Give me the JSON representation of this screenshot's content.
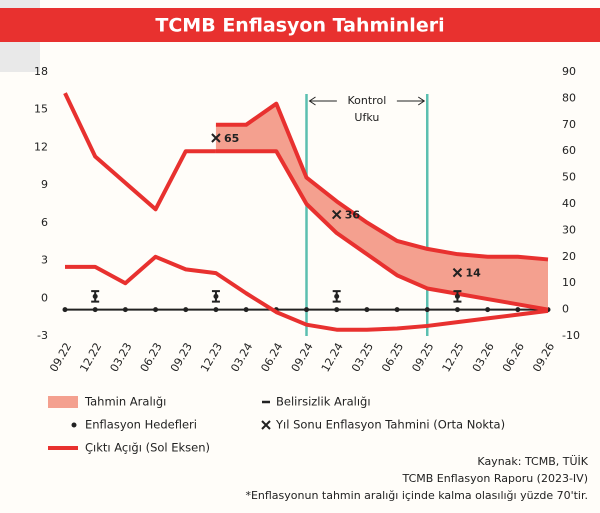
{
  "chart_data": {
    "type": "line",
    "title": "TCMB Enflasyon Tahminleri",
    "categories": [
      "09.22",
      "12.22",
      "03.23",
      "06.23",
      "09.23",
      "12.23",
      "03.24",
      "06.24",
      "09.24",
      "12.24",
      "03.25",
      "06.25",
      "09.25",
      "12.25",
      "03.26",
      "06.26",
      "09.26"
    ],
    "ylim": [
      -3,
      18
    ],
    "yticks": [
      -3,
      0,
      3,
      6,
      9,
      12,
      15,
      18
    ],
    "y2lim": [
      -10,
      90
    ],
    "y2ticks": [
      -10,
      0,
      10,
      20,
      30,
      40,
      50,
      60,
      70,
      80,
      90
    ],
    "series": [
      {
        "name": "Tahmin Aralığı",
        "type": "band",
        "axis": "y2",
        "color": "#f4a08f",
        "line_color": "#e8312f",
        "lower": [
          null,
          null,
          null,
          null,
          null,
          60,
          60,
          60,
          40,
          29,
          21,
          13,
          8,
          6,
          4,
          2,
          0
        ],
        "upper": [
          null,
          null,
          null,
          null,
          null,
          70,
          70,
          78,
          50,
          41,
          33,
          26,
          23,
          21,
          20,
          20,
          19
        ]
      },
      {
        "type": "line",
        "axis": "y2",
        "color": "#e8312f",
        "values": [
          82,
          58,
          48,
          38,
          60,
          60,
          null,
          null,
          null,
          null,
          null,
          null,
          null,
          null,
          null,
          null,
          null
        ]
      },
      {
        "name": "Belirsizlik Aralığı",
        "type": "errorbar",
        "axis": "y2",
        "color": "#222",
        "lower": [
          null,
          3,
          null,
          null,
          null,
          3,
          null,
          null,
          null,
          3,
          null,
          null,
          null,
          3,
          null,
          null,
          null
        ],
        "upper": [
          null,
          7,
          null,
          null,
          null,
          7,
          null,
          null,
          null,
          7,
          null,
          null,
          null,
          7,
          null,
          null,
          null
        ]
      },
      {
        "name": "Enflasyon Hedefleri",
        "type": "dot",
        "axis": "y2",
        "color": "#222",
        "values": [
          null,
          5,
          null,
          null,
          null,
          5,
          null,
          null,
          null,
          5,
          null,
          null,
          null,
          5,
          null,
          null,
          null
        ]
      },
      {
        "name": "Yıl Sonu Enflasyon Tahmini (Orta Nokta)",
        "type": "x",
        "axis": "y2",
        "color": "#222",
        "values": [
          null,
          null,
          null,
          null,
          null,
          65,
          null,
          null,
          null,
          36,
          null,
          null,
          null,
          14,
          null,
          null,
          null
        ]
      },
      {
        "name": "Çıktı Açığı (Sol Eksen)",
        "type": "line",
        "axis": "y",
        "color": "#e8312f",
        "values": [
          2.5,
          2.5,
          1.2,
          3.3,
          2.3,
          2.0,
          0.4,
          -1.1,
          -2.1,
          -2.5,
          -2.5,
          -2.4,
          -2.2,
          -1.9,
          -1.6,
          -1.3,
          -1.0
        ]
      }
    ],
    "control_horizon": {
      "label": [
        "Kontrol",
        "Ufku"
      ],
      "at": [
        "09.24",
        "09.25"
      ],
      "color": "#5bbfb0"
    },
    "source": "Kaynak: TCMB, TÜİK",
    "report": "TCMB Enflasyon Raporu (2023-IV)",
    "note": "*Enflasyonun tahmin aralığı içinde kalma olasılığı yüzde 70'tir."
  }
}
